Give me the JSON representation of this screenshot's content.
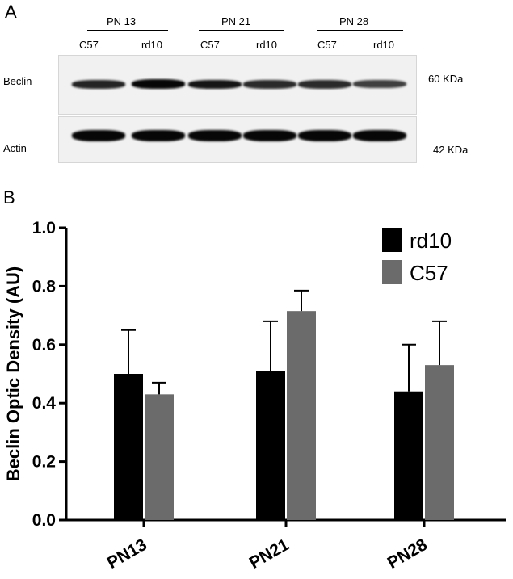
{
  "panel_a": {
    "letter": "A",
    "groups": [
      {
        "label": "PN 13",
        "lanes": [
          "C57",
          "rd10"
        ]
      },
      {
        "label": "PN 21",
        "lanes": [
          "C57",
          "rd10"
        ]
      },
      {
        "label": "PN 28",
        "lanes": [
          "C57",
          "rd10"
        ]
      }
    ],
    "rows": [
      {
        "protein": "Beclin",
        "size": "60 KDa",
        "band_intensity": [
          0.75,
          0.95,
          0.85,
          0.7,
          0.7,
          0.55
        ]
      },
      {
        "protein": "Actin",
        "size": "42 KDa",
        "band_intensity": [
          0.95,
          0.95,
          0.95,
          0.95,
          0.95,
          0.95
        ]
      }
    ]
  },
  "panel_b": {
    "letter": "B"
  },
  "chart_data": {
    "type": "bar",
    "categories": [
      "PN13",
      "PN21",
      "PN28"
    ],
    "series": [
      {
        "name": "rd10",
        "values": [
          0.5,
          0.51,
          0.44
        ],
        "errors": [
          0.15,
          0.17,
          0.16
        ],
        "color": "#000000"
      },
      {
        "name": "C57",
        "values": [
          0.43,
          0.715,
          0.53
        ],
        "errors": [
          0.04,
          0.07,
          0.15
        ],
        "color": "#6b6b6b"
      }
    ],
    "title": "",
    "xlabel": "",
    "ylabel": "Beclin Optic Density (AU)",
    "ylim": [
      0,
      1.0
    ],
    "yticks": [
      "0.0",
      "0.2",
      "0.4",
      "0.6",
      "0.8",
      "1.0"
    ],
    "legend_position": "top-right",
    "grid": false
  }
}
